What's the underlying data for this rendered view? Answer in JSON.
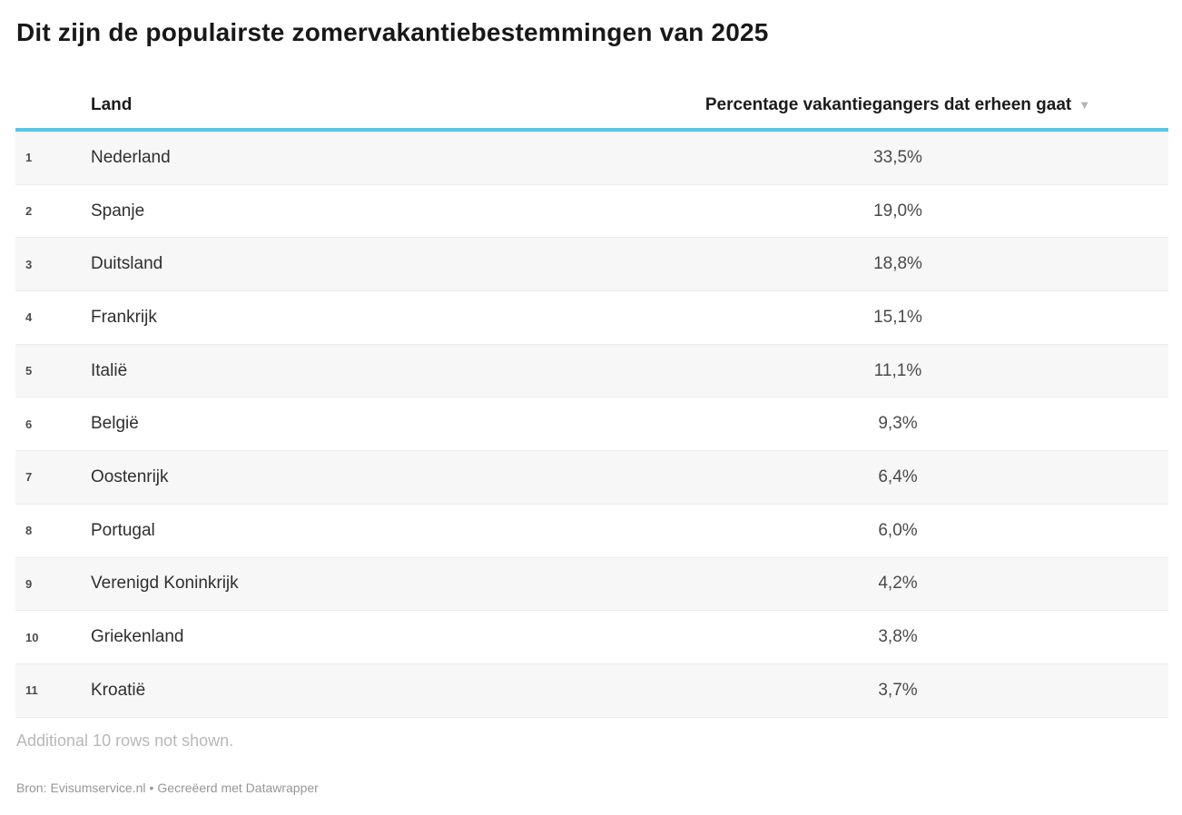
{
  "title": "Dit zijn de populairste zomervakantiebestemmingen van 2025",
  "accent_color": "#55c6e8",
  "stripe_color": "#f7f7f7",
  "table": {
    "headers": {
      "land": "Land",
      "pct": "Percentage vakantiegangers dat erheen gaat",
      "sort_icon": "▼"
    },
    "rows": [
      {
        "rank": "1",
        "land": "Nederland",
        "pct": "33,5%"
      },
      {
        "rank": "2",
        "land": "Spanje",
        "pct": "19,0%"
      },
      {
        "rank": "3",
        "land": "Duitsland",
        "pct": "18,8%"
      },
      {
        "rank": "4",
        "land": "Frankrijk",
        "pct": "15,1%"
      },
      {
        "rank": "5",
        "land": "Italië",
        "pct": "11,1%"
      },
      {
        "rank": "6",
        "land": "België",
        "pct": "9,3%"
      },
      {
        "rank": "7",
        "land": "Oostenrijk",
        "pct": "6,4%"
      },
      {
        "rank": "8",
        "land": "Portugal",
        "pct": "6,0%"
      },
      {
        "rank": "9",
        "land": "Verenigd Koninkrijk",
        "pct": "4,2%"
      },
      {
        "rank": "10",
        "land": "Griekenland",
        "pct": "3,8%"
      },
      {
        "rank": "11",
        "land": "Kroatië",
        "pct": "3,7%"
      }
    ]
  },
  "footer": {
    "additional": "Additional 10 rows not shown.",
    "source_label": "Bron:",
    "source_name": "Evisumservice.nl",
    "separator": "•",
    "attribution": "Gecreëerd met Datawrapper"
  },
  "chart_data": {
    "type": "table",
    "title": "Dit zijn de populairste zomervakantiebestemmingen van 2025",
    "columns": [
      "Land",
      "Percentage vakantiegangers dat erheen gaat"
    ],
    "rows": [
      [
        "Nederland",
        33.5
      ],
      [
        "Spanje",
        19.0
      ],
      [
        "Duitsland",
        18.8
      ],
      [
        "Frankrijk",
        15.1
      ],
      [
        "Italië",
        11.1
      ],
      [
        "België",
        9.3
      ],
      [
        "Oostenrijk",
        6.4
      ],
      [
        "Portugal",
        6.0
      ],
      [
        "Verenigd Koninkrijk",
        4.2
      ],
      [
        "Griekenland",
        3.8
      ],
      [
        "Kroatië",
        3.7
      ]
    ],
    "units": "%",
    "sort": "descending by percentage",
    "hidden_rows": 10
  }
}
